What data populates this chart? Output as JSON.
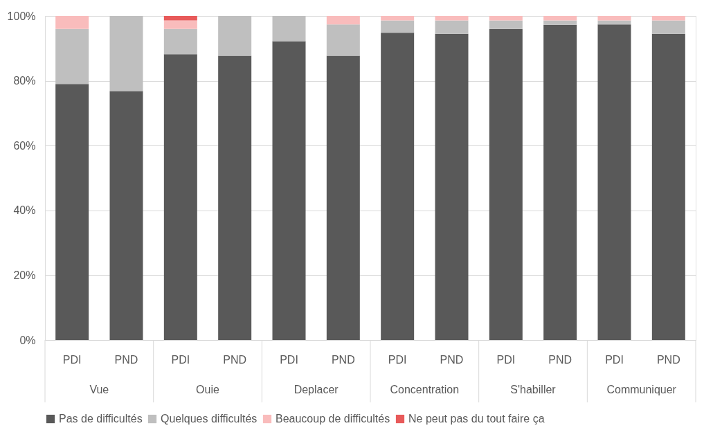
{
  "chart_data": {
    "type": "bar",
    "stacked": true,
    "categories": [
      "PDI",
      "PND",
      "PDI",
      "PND",
      "PDI",
      "PND",
      "PDI",
      "PND",
      "PDI",
      "PND",
      "PDI",
      "PND"
    ],
    "annotations": [
      "Vue",
      "Ouie",
      "Deplacer",
      "Concentration",
      "S'habiller",
      "Communiquer"
    ],
    "series": [
      {
        "name": "Pas de difficultés",
        "color": "#595959",
        "values": [
          79.0,
          76.8,
          88.2,
          87.7,
          92.2,
          87.7,
          94.8,
          94.5,
          96.0,
          97.3,
          97.4,
          94.5
        ]
      },
      {
        "name": "Quelques difficultés",
        "color": "#bfbfbf",
        "values": [
          17.0,
          23.2,
          7.8,
          12.3,
          7.8,
          9.7,
          3.8,
          4.1,
          2.6,
          1.3,
          1.2,
          4.1
        ]
      },
      {
        "name": "Beaucoup de difficultés",
        "color": "#f9bcbc",
        "values": [
          4.0,
          null,
          2.6,
          null,
          null,
          2.6,
          1.4,
          1.4,
          1.4,
          1.4,
          1.4,
          1.4
        ]
      },
      {
        "name": "Ne peut pas du tout faire ça",
        "color": "#e85a5a",
        "values": [
          null,
          null,
          1.4,
          null,
          null,
          null,
          null,
          null,
          null,
          null,
          null,
          null
        ]
      }
    ],
    "ylim": [
      0,
      100
    ],
    "yticks": [
      {
        "value": 0,
        "label": "0%"
      },
      {
        "value": 20,
        "label": "20%"
      },
      {
        "value": 40,
        "label": "40%"
      },
      {
        "value": 60,
        "label": "60%"
      },
      {
        "value": 80,
        "label": "80%"
      },
      {
        "value": 100,
        "label": "100%"
      }
    ],
    "grid": "y",
    "legend": "bottom"
  }
}
